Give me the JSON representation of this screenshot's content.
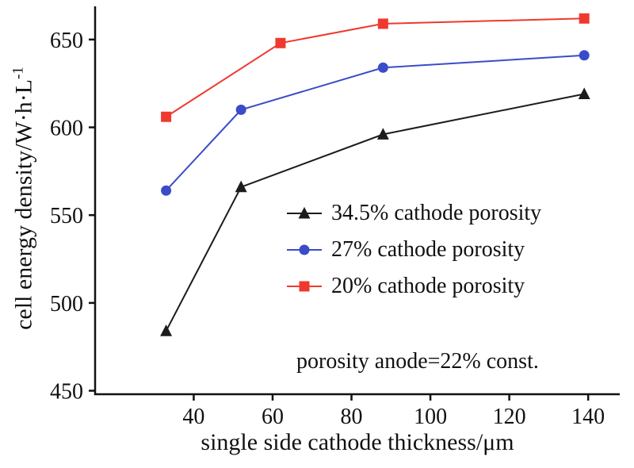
{
  "chart_data": {
    "type": "line",
    "title": "",
    "xlabel": "single side cathode thickness/μm",
    "ylabel": "cell energy density/W·h·L⁻¹",
    "ylabel_base": "cell energy density/W·h·L",
    "ylabel_sup": "-1",
    "xlim": [
      15,
      148
    ],
    "ylim": [
      448,
      668
    ],
    "xticks": [
      40,
      60,
      80,
      100,
      120,
      140
    ],
    "yticks": [
      450,
      500,
      550,
      600,
      650
    ],
    "grid": false,
    "legend_position": "inside-center-right",
    "annotation": "porosity anode=22% const.",
    "axis_color": "#111111",
    "series": [
      {
        "name": "34.5% cathode porosity",
        "marker": "triangle",
        "color": "#1c1c1c",
        "points": [
          [
            33,
            484
          ],
          [
            52,
            566
          ],
          [
            88,
            596
          ],
          [
            139,
            619
          ]
        ]
      },
      {
        "name": "27% cathode porosity",
        "marker": "circle",
        "color": "#3b4cc8",
        "points": [
          [
            33,
            564
          ],
          [
            52,
            610
          ],
          [
            88,
            634
          ],
          [
            139,
            641
          ]
        ]
      },
      {
        "name": "20% cathode porosity",
        "marker": "square",
        "color": "#ef392f",
        "points": [
          [
            33,
            606
          ],
          [
            62,
            648
          ],
          [
            88,
            659
          ],
          [
            139,
            662
          ]
        ]
      }
    ]
  }
}
